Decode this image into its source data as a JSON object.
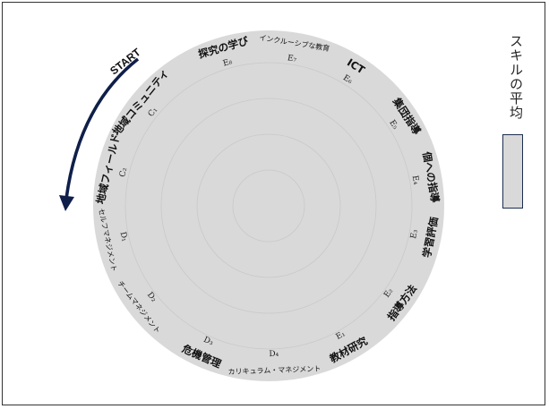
{
  "colors": {
    "circle_fill": "#d9d9d9",
    "ring": "#c9c9c9",
    "arrow": "#0f1f4a",
    "swatch_fill": "#d9d9d9"
  },
  "start_label": "START",
  "legend": {
    "label": "スキルの平均"
  },
  "segments": [
    {
      "label": "探究の学び",
      "code": "E₈",
      "angle": -16
    },
    {
      "label": "インクルーシブな教育",
      "code": "E₇",
      "angle": 9
    },
    {
      "label": "ICT",
      "code": "E₆",
      "angle": 32
    },
    {
      "label": "集団指導",
      "code": "E₅",
      "angle": 57
    },
    {
      "label": "個への指導",
      "code": "E₄",
      "angle": 80
    },
    {
      "label": "学習評価",
      "code": "E₃",
      "angle": 101
    },
    {
      "label": "指導方法",
      "code": "E₂",
      "angle": 126
    },
    {
      "label": "教材研究",
      "code": "E₁",
      "angle": 151
    },
    {
      "label": "カリキュラム・マネジメント",
      "code": "D₄",
      "angle": 178
    },
    {
      "label": "危機管理",
      "code": "D₃",
      "angle": 204
    },
    {
      "label": "チームマネジメント",
      "code": "D₂",
      "angle": 232
    },
    {
      "label": "セルフマネジメント",
      "code": "D₁",
      "angle": 258
    },
    {
      "label": "地域フィールド",
      "code": "C₂",
      "angle": 283
    },
    {
      "label": "地域コミュニティ",
      "code": "C₁",
      "angle": 309
    }
  ]
}
